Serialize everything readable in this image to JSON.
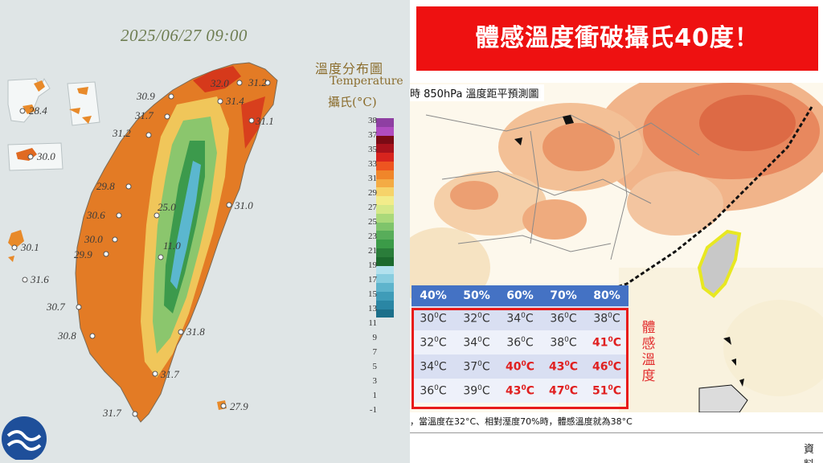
{
  "left_panel": {
    "datetime": "2025/06/27 09:00",
    "legend_title_zh": "溫度分布圖",
    "legend_title_en": "Temperature",
    "legend_unit": "攝氏(°C)",
    "scale_ticks": [
      "38",
      "37",
      "35",
      "33",
      "31",
      "29",
      "27",
      "25",
      "23",
      "21",
      "19",
      "17",
      "15",
      "13",
      "11",
      "9",
      "7",
      "5",
      "3",
      "1",
      "-1"
    ],
    "scale_colors": [
      "#8e3fa2",
      "#b04cc0",
      "#7a0a14",
      "#a8121c",
      "#d8241e",
      "#ee5520",
      "#f0862a",
      "#f4ab44",
      "#f6d36a",
      "#f2ec8a",
      "#d5e888",
      "#aad97a",
      "#7fc46b",
      "#58ad5a",
      "#3b9b48",
      "#2a7d3a",
      "#1c6a2e",
      "#b2e1ee",
      "#88cddf",
      "#5eb4cc",
      "#3f9cb8",
      "#2a86a4",
      "#1c6f8a"
    ],
    "stations": [
      {
        "name": "mazu",
        "value": "28.4"
      },
      {
        "name": "kinmen",
        "value": "30.0"
      },
      {
        "name": "tamsui",
        "value": "30.9"
      },
      {
        "name": "keelung-north",
        "value": "32.0"
      },
      {
        "name": "keelung",
        "value": "31.2"
      },
      {
        "name": "taipei",
        "value": "31.4"
      },
      {
        "name": "hsinchu-north",
        "value": "31.7"
      },
      {
        "name": "yilan",
        "value": "31.1"
      },
      {
        "name": "hsinchu",
        "value": "31.2"
      },
      {
        "name": "taichung-coast",
        "value": "29.8"
      },
      {
        "name": "sunmoonlake",
        "value": "25.0"
      },
      {
        "name": "hualien",
        "value": "31.0"
      },
      {
        "name": "changhua",
        "value": "30.6"
      },
      {
        "name": "penghu",
        "value": "30.1"
      },
      {
        "name": "yunlin",
        "value": "30.0"
      },
      {
        "name": "chiayi",
        "value": "29.9"
      },
      {
        "name": "yushan",
        "value": "11.0"
      },
      {
        "name": "penghu-south",
        "value": "31.6"
      },
      {
        "name": "tainan",
        "value": "30.7"
      },
      {
        "name": "taitung-north",
        "value": "31.8"
      },
      {
        "name": "kaohsiung",
        "value": "30.8"
      },
      {
        "name": "taitung",
        "value": "31.7"
      },
      {
        "name": "hengchun",
        "value": "31.7"
      },
      {
        "name": "lanyu",
        "value": "27.9"
      }
    ]
  },
  "right_panel": {
    "banner": "體感溫度衝破攝氏40度！",
    "map_title": "時 850hPa 溫度距平預測圖",
    "vertical_label": [
      "體",
      "感",
      "溫",
      "度"
    ],
    "table": {
      "headers": [
        "40%",
        "50%",
        "60%",
        "70%",
        "80%"
      ],
      "rows": [
        [
          {
            "n": "30",
            "hot": false
          },
          {
            "n": "32",
            "hot": false
          },
          {
            "n": "34",
            "hot": false
          },
          {
            "n": "36",
            "hot": false
          },
          {
            "n": "38",
            "hot": false
          }
        ],
        [
          {
            "n": "32",
            "hot": false
          },
          {
            "n": "34",
            "hot": false
          },
          {
            "n": "36",
            "hot": false
          },
          {
            "n": "38",
            "hot": false
          },
          {
            "n": "41",
            "hot": true
          }
        ],
        [
          {
            "n": "34",
            "hot": false
          },
          {
            "n": "37",
            "hot": false
          },
          {
            "n": "40",
            "hot": true
          },
          {
            "n": "43",
            "hot": true
          },
          {
            "n": "46",
            "hot": true
          }
        ],
        [
          {
            "n": "36",
            "hot": false
          },
          {
            "n": "39",
            "hot": false
          },
          {
            "n": "43",
            "hot": true
          },
          {
            "n": "47",
            "hot": true
          },
          {
            "n": "51",
            "hot": true
          }
        ]
      ],
      "unit": "0C"
    },
    "note": "，當溫度在32°C、相對溼度70%時，體感溫度就為38°C",
    "source": "資料"
  }
}
